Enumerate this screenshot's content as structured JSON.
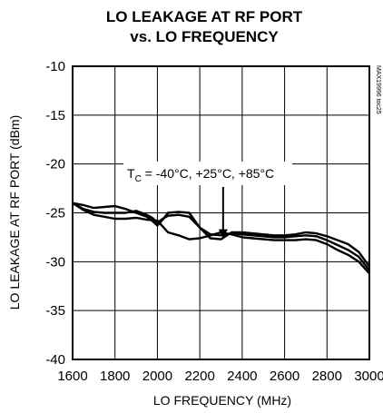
{
  "chart_data": {
    "type": "line",
    "title": "LO LEAKAGE AT RF PORT",
    "subtitle": "vs. LO FREQUENCY",
    "xlabel": "LO FREQUENCY (MHz)",
    "ylabel": "LO LEAKAGE AT RF PORT (dBm)",
    "xlim": [
      1600,
      3000
    ],
    "ylim": [
      -40,
      -10
    ],
    "x_ticks": [
      "1600",
      "1800",
      "2000",
      "2200",
      "2400",
      "2600",
      "2800",
      "3000"
    ],
    "y_ticks": [
      "-10",
      "-15",
      "-20",
      "-25",
      "-30",
      "-35",
      "-40"
    ],
    "grid": true,
    "annotation": {
      "text_prefix": "T",
      "text_sub": "C",
      "text_rest": " = -40°C, +25°C, +85°C",
      "arrow_to": [
        2310,
        -27.7
      ]
    },
    "side_label": "MAX19996 toc25",
    "series": [
      {
        "x": [
          1600,
          1650,
          1700,
          1750,
          1800,
          1850,
          1900,
          1950,
          1975,
          2000,
          2025,
          2050,
          2100,
          2150,
          2200,
          2250,
          2300,
          2350,
          2400,
          2450,
          2500,
          2550,
          2600,
          2650,
          2700,
          2750,
          2800,
          2850,
          2900,
          2950,
          3000
        ],
        "y": [
          -24.0,
          -24.2,
          -24.5,
          -24.4,
          -24.3,
          -24.6,
          -25.0,
          -25.4,
          -25.8,
          -26.3,
          -25.7,
          -25.0,
          -24.9,
          -25.0,
          -26.5,
          -27.6,
          -27.7,
          -27.0,
          -27.0,
          -27.1,
          -27.2,
          -27.3,
          -27.3,
          -27.2,
          -27.0,
          -27.1,
          -27.4,
          -27.8,
          -28.2,
          -29.0,
          -30.5
        ]
      },
      {
        "x": [
          1600,
          1650,
          1700,
          1750,
          1800,
          1850,
          1900,
          1950,
          1975,
          2000,
          2025,
          2050,
          2100,
          2150,
          2200,
          2250,
          2300,
          2350,
          2400,
          2450,
          2500,
          2550,
          2600,
          2650,
          2700,
          2750,
          2800,
          2850,
          2900,
          2950,
          3000
        ],
        "y": [
          -24.0,
          -24.6,
          -24.9,
          -25.0,
          -25.0,
          -25.0,
          -24.8,
          -25.2,
          -25.5,
          -26.0,
          -25.6,
          -25.3,
          -25.2,
          -25.4,
          -26.5,
          -27.2,
          -27.3,
          -27.1,
          -27.2,
          -27.3,
          -27.4,
          -27.5,
          -27.5,
          -27.4,
          -27.3,
          -27.4,
          -27.8,
          -28.3,
          -28.8,
          -29.5,
          -30.9
        ]
      },
      {
        "x": [
          1600,
          1650,
          1700,
          1750,
          1800,
          1850,
          1900,
          1950,
          2000,
          2025,
          2050,
          2100,
          2150,
          2200,
          2250,
          2300,
          2350,
          2400,
          2450,
          2500,
          2550,
          2600,
          2650,
          2700,
          2750,
          2800,
          2850,
          2900,
          2950,
          3000
        ],
        "y": [
          -24.0,
          -24.7,
          -25.2,
          -25.4,
          -25.6,
          -25.6,
          -25.5,
          -25.7,
          -25.8,
          -26.4,
          -27.0,
          -27.3,
          -27.7,
          -27.6,
          -27.3,
          -27.0,
          -27.2,
          -27.5,
          -27.6,
          -27.7,
          -27.8,
          -27.8,
          -27.8,
          -27.7,
          -27.8,
          -28.2,
          -28.8,
          -29.3,
          -30.0,
          -31.2
        ]
      }
    ]
  }
}
